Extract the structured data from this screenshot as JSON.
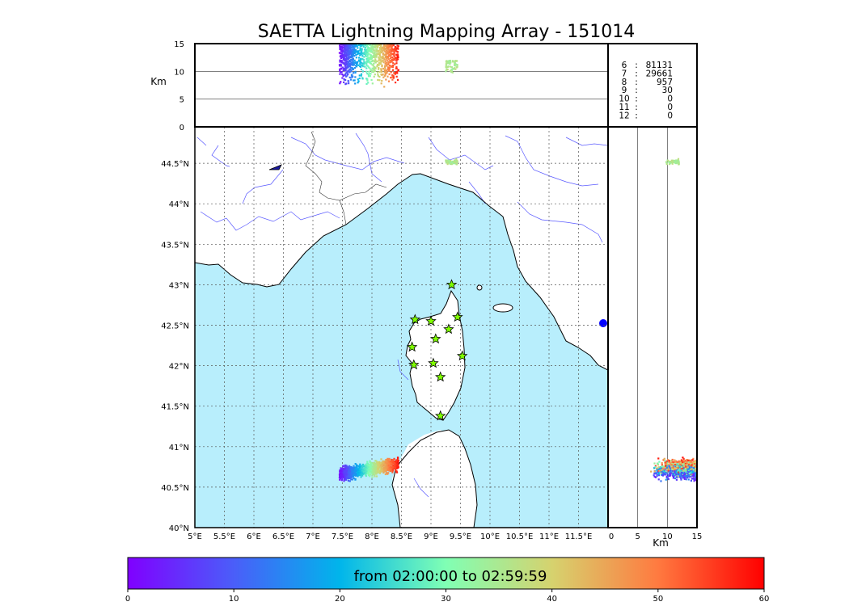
{
  "chart_data": {
    "type": "scatter",
    "title": "SAETTA Lightning Mapping Array - 151014",
    "map_panel": {
      "x_ticks": [
        "5°E",
        "5.5°E",
        "6°E",
        "6.5°E",
        "7°E",
        "7.5°E",
        "8°E",
        "8.5°E",
        "9°E",
        "9.5°E",
        "10°E",
        "10.5°E",
        "11°E",
        "11.5°E"
      ],
      "x_tick_values": [
        5,
        5.5,
        6,
        6.5,
        7,
        7.5,
        8,
        8.5,
        9,
        9.5,
        10,
        10.5,
        11,
        11.5
      ],
      "y_ticks": [
        "40°N",
        "40.5°N",
        "41°N",
        "41.5°N",
        "42°N",
        "42.5°N",
        "43°N",
        "43.5°N",
        "44°N",
        "44.5°N"
      ],
      "y_tick_values": [
        40,
        40.5,
        41,
        41.5,
        42,
        42.5,
        43,
        43.5,
        44,
        44.5
      ],
      "xlim": [
        5,
        12.0
      ],
      "ylim": [
        40,
        44.95
      ],
      "grid": true,
      "sea_color": "#b8eefc",
      "land_color": "#ffffff"
    },
    "height_panel": {
      "ylabel": "Km",
      "y_ticks": [
        "0",
        "5",
        "10",
        "15"
      ],
      "y_tick_values": [
        0,
        5,
        10,
        15
      ],
      "ylim": [
        0,
        15
      ]
    },
    "side_panel": {
      "xlabel": "Km",
      "x_ticks": [
        "0",
        "5",
        "10",
        "15"
      ],
      "x_tick_values": [
        0,
        5,
        10,
        15
      ],
      "xlim": [
        0,
        15
      ]
    },
    "stations": [
      {
        "lon": 9.35,
        "lat": 43.0
      },
      {
        "lon": 8.73,
        "lat": 42.57
      },
      {
        "lon": 9.0,
        "lat": 42.55
      },
      {
        "lon": 9.45,
        "lat": 42.6
      },
      {
        "lon": 9.3,
        "lat": 42.45
      },
      {
        "lon": 9.08,
        "lat": 42.33
      },
      {
        "lon": 8.68,
        "lat": 42.23
      },
      {
        "lon": 9.53,
        "lat": 42.12
      },
      {
        "lon": 8.71,
        "lat": 42.01
      },
      {
        "lon": 9.04,
        "lat": 42.03
      },
      {
        "lon": 9.16,
        "lat": 41.86
      },
      {
        "lon": 9.16,
        "lat": 41.38
      }
    ],
    "station_color": "#7fff00",
    "clusters": [
      {
        "name": "main",
        "lon": [
          7.45,
          8.45
        ],
        "lat": [
          40.6,
          40.85
        ],
        "alt": [
          3,
          15
        ]
      },
      {
        "name": "small",
        "lon": [
          9.25,
          9.45
        ],
        "lat": [
          44.48,
          44.56
        ],
        "alt": [
          8,
          12
        ]
      }
    ],
    "counts": [
      {
        "label": "6",
        "value": "81131",
        "color": "#000000"
      },
      {
        "label": "7",
        "value": "29661",
        "color": "#ff0000"
      },
      {
        "label": "8",
        "value": "957",
        "color": "#000000"
      },
      {
        "label": "9",
        "value": "30",
        "color": "#000000"
      },
      {
        "label": "10",
        "value": "0",
        "color": "#000000"
      },
      {
        "label": "11",
        "value": "0",
        "color": "#000000"
      },
      {
        "label": "12",
        "value": "0",
        "color": "#000000"
      }
    ],
    "colorbar": {
      "label": "from 02:00:00 to 02:59:59",
      "ticks": [
        "0",
        "10",
        "20",
        "30",
        "40",
        "50",
        "60"
      ],
      "tick_values": [
        0,
        10,
        20,
        30,
        40,
        50,
        60
      ],
      "range": [
        0,
        60
      ],
      "colormap": "rainbow"
    }
  }
}
